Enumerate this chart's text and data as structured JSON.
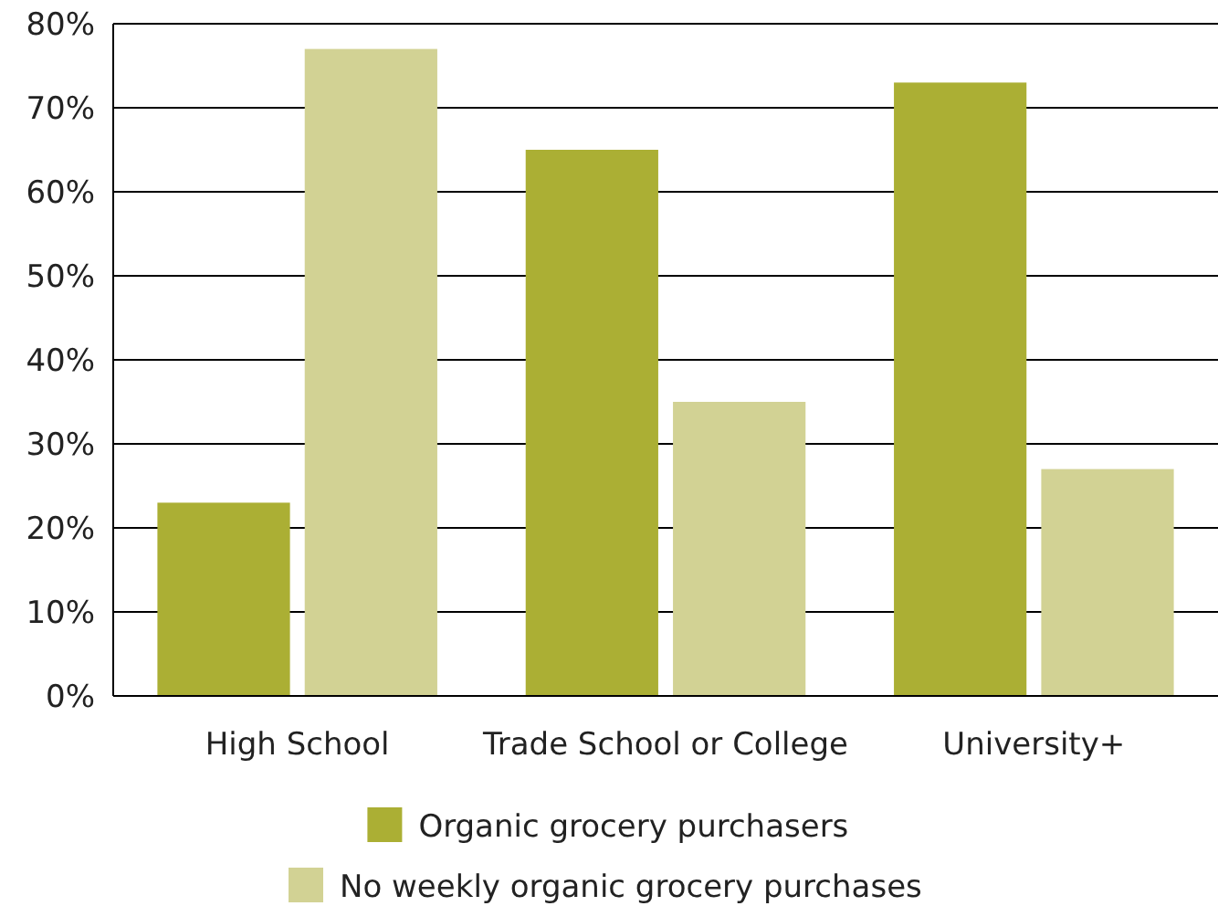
{
  "chart_data": {
    "type": "bar",
    "categories": [
      "High School",
      "Trade School or College",
      "University+"
    ],
    "series": [
      {
        "name": "Organic grocery purchasers",
        "color": "#abaf34",
        "values": [
          23,
          65,
          73
        ]
      },
      {
        "name": "No weekly organic grocery purchases",
        "color": "#d2d294",
        "values": [
          77,
          35,
          27
        ]
      }
    ],
    "ylim": [
      0,
      80
    ],
    "yticks": [
      {
        "value": 0,
        "label": "0%"
      },
      {
        "value": 10,
        "label": "10%"
      },
      {
        "value": 20,
        "label": "20%"
      },
      {
        "value": 30,
        "label": "30%"
      },
      {
        "value": 40,
        "label": "40%"
      },
      {
        "value": 50,
        "label": "50%"
      },
      {
        "value": 60,
        "label": "60%"
      },
      {
        "value": 70,
        "label": "70%"
      },
      {
        "value": 80,
        "label": "80%"
      }
    ],
    "grid": "y",
    "legend": "bottom"
  }
}
